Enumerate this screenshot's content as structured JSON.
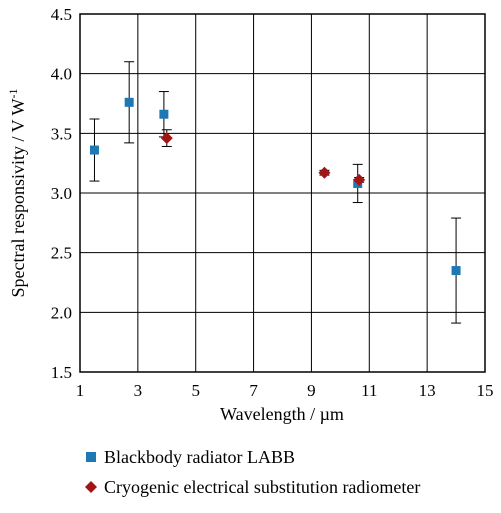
{
  "chart_data": {
    "type": "scatter",
    "title": "",
    "xlabel": "Wavelength  / µm",
    "ylabel": "Spectral responsivity / V W",
    "ylabel_superscript": "-1",
    "xlim": [
      1,
      15
    ],
    "ylim": [
      1.5,
      4.5
    ],
    "x_ticks": [
      "1",
      "3",
      "5",
      "7",
      "9",
      "11",
      "13",
      "15"
    ],
    "y_ticks": [
      "1.5",
      "2.0",
      "2.5",
      "3.0",
      "3.5",
      "4.0",
      "4.5"
    ],
    "grid": true,
    "legend_position": "bottom",
    "series": [
      {
        "name": "Blackbody radiator LABB",
        "marker": "square",
        "color": "#1f77b4",
        "points": [
          {
            "x": 1.5,
            "y": 3.36,
            "err": 0.26
          },
          {
            "x": 2.7,
            "y": 3.76,
            "err": 0.34
          },
          {
            "x": 3.9,
            "y": 3.66,
            "err": 0.19
          },
          {
            "x": 10.6,
            "y": 3.08,
            "err": 0.16
          },
          {
            "x": 14.0,
            "y": 2.35,
            "err": 0.44
          }
        ]
      },
      {
        "name": "Cryogenic electrical substitution radiometer",
        "marker": "diamond",
        "color": "#a31515",
        "points": [
          {
            "x": 4.0,
            "y": 3.46,
            "err": 0.07
          },
          {
            "x": 9.45,
            "y": 3.17,
            "err": 0.02
          },
          {
            "x": 10.65,
            "y": 3.11,
            "err": 0.02
          }
        ]
      }
    ]
  }
}
